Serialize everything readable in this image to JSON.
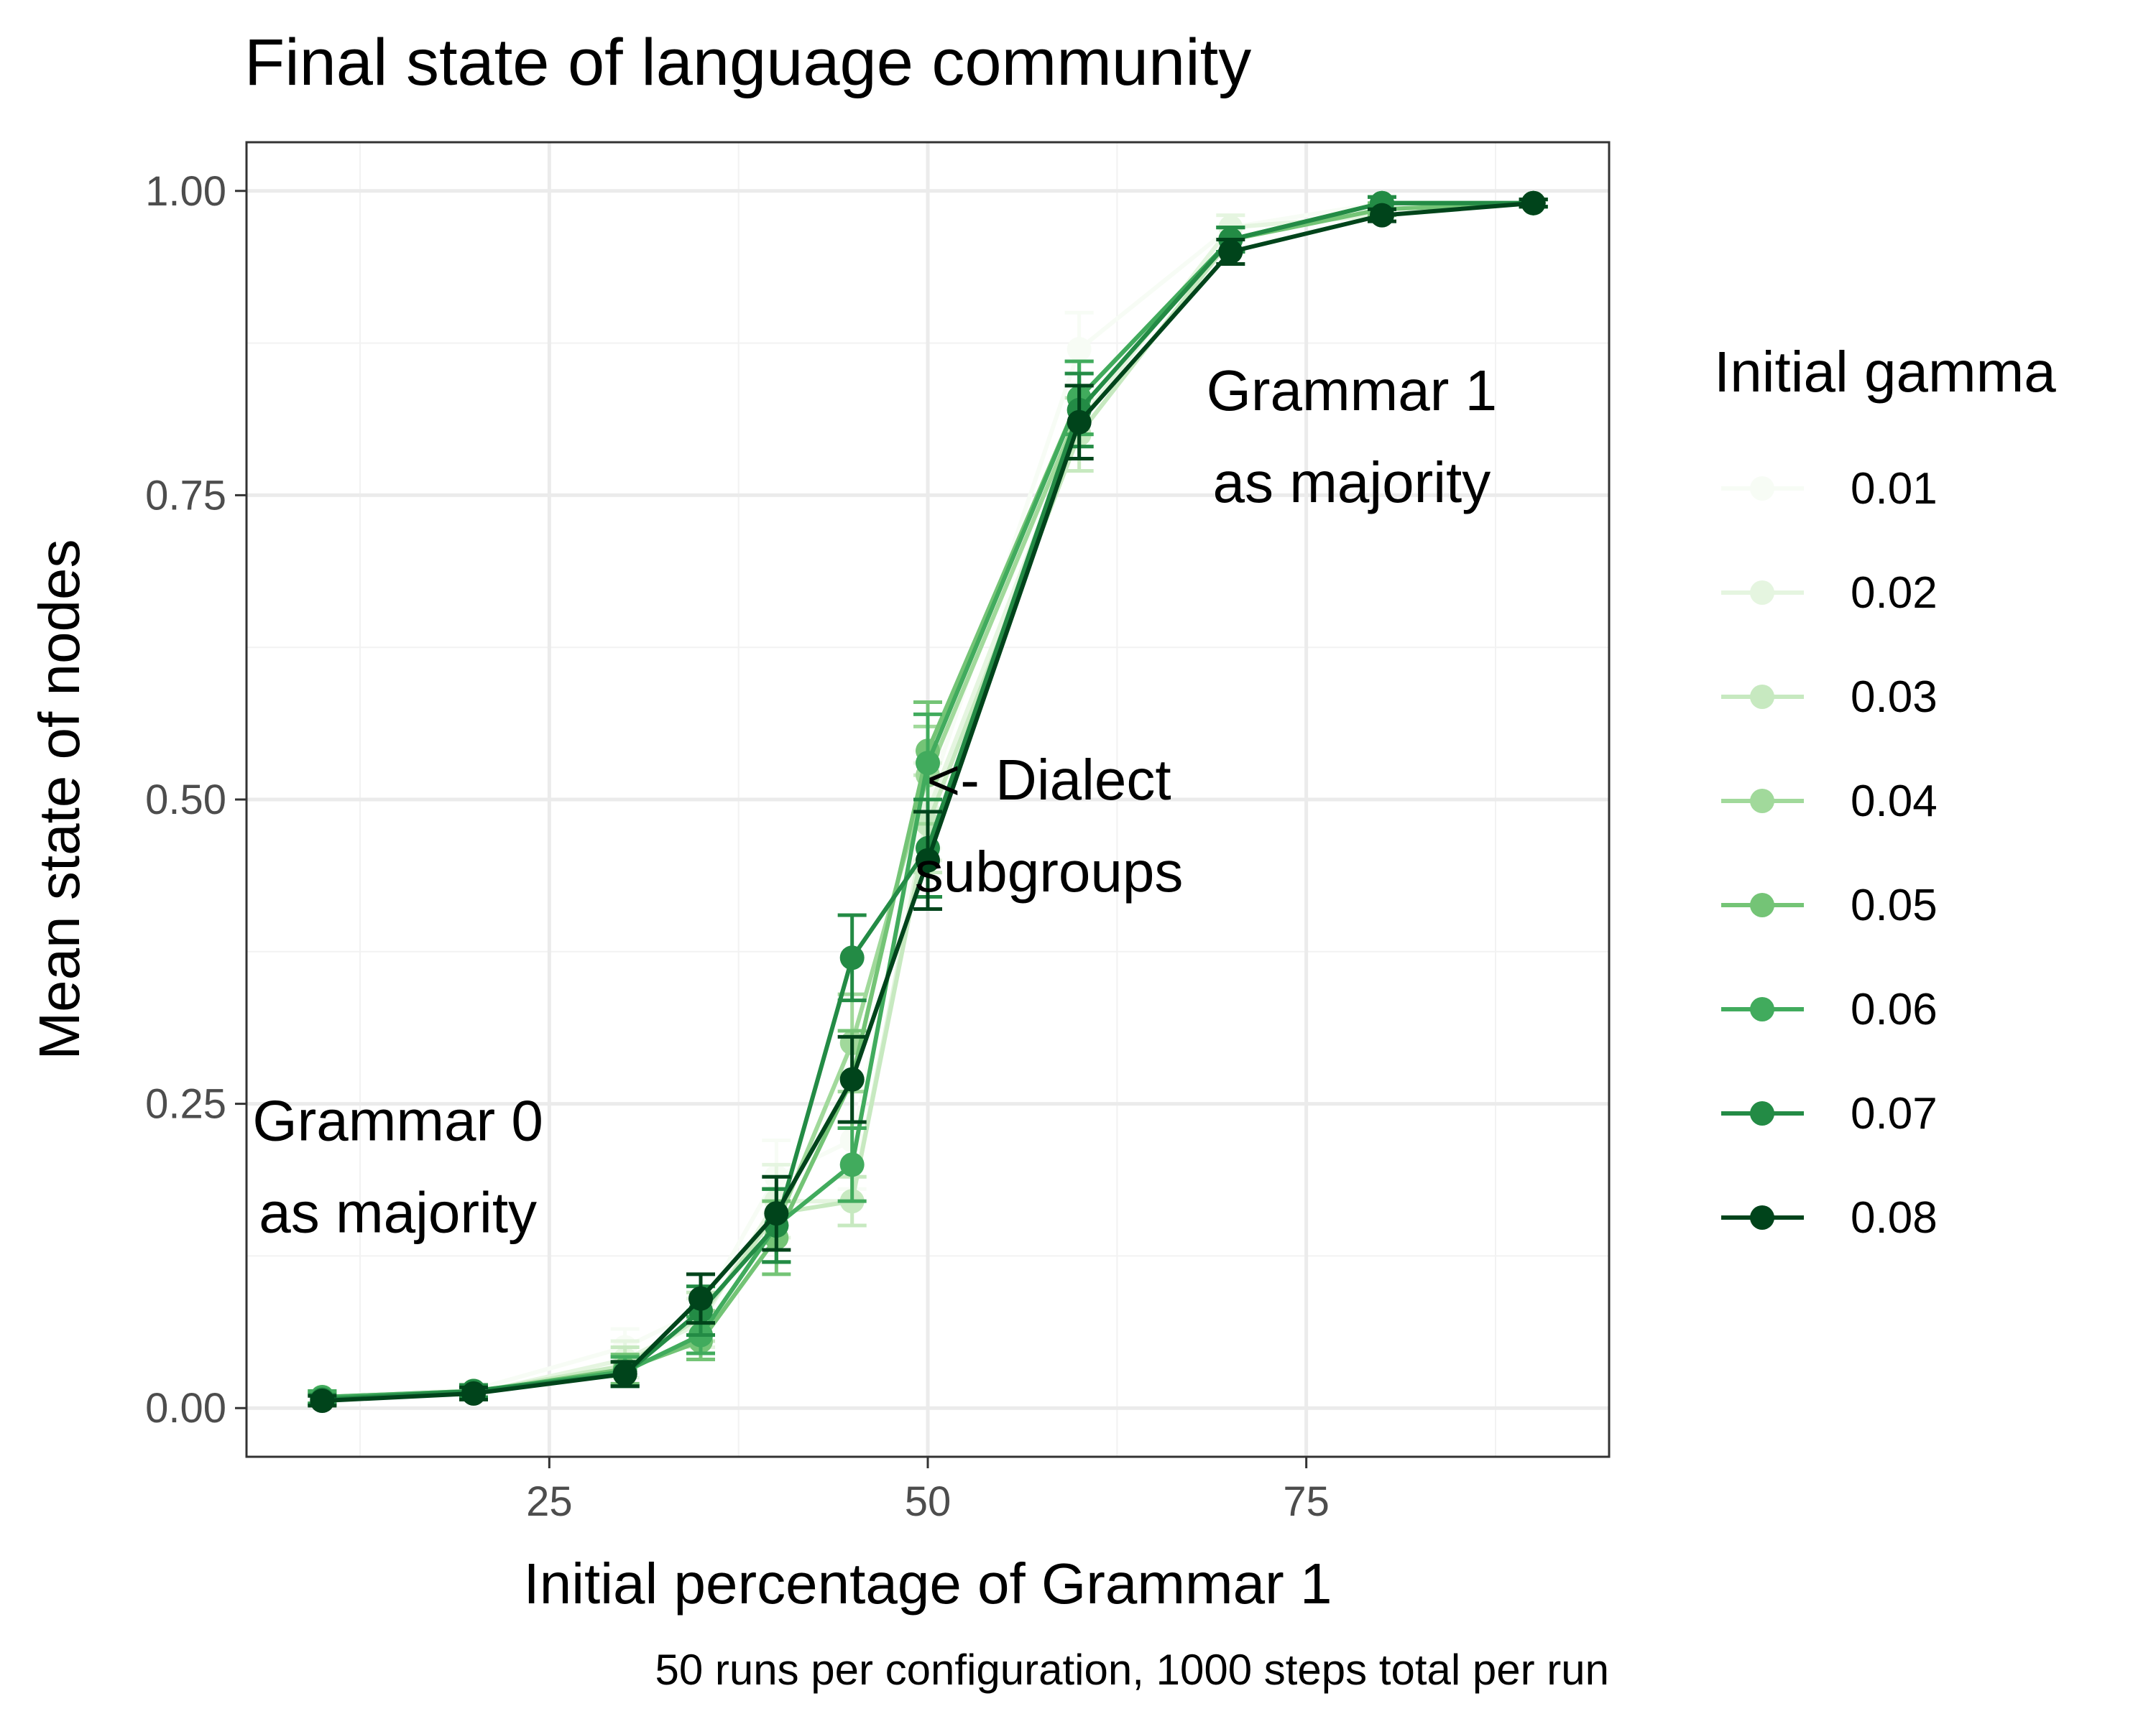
{
  "chart_data": {
    "type": "line",
    "title": "Final state of language community",
    "xlabel": "Initial percentage of Grammar 1",
    "ylabel": "Mean state of nodes",
    "caption": "50 runs per configuration, 1000 steps total per run",
    "xlim": [
      5,
      95
    ],
    "ylim": [
      -0.04,
      1.04
    ],
    "x_ticks": [
      25,
      50,
      75
    ],
    "y_ticks": [
      0.0,
      0.25,
      0.5,
      0.75,
      1.0
    ],
    "y_tick_labels": [
      "0.00",
      "0.25",
      "0.50",
      "0.75",
      "1.00"
    ],
    "grid": true,
    "legend": {
      "title": "Initial gamma",
      "position": "right"
    },
    "annotations": [
      {
        "lines": [
          "Grammar 0",
          "as majority"
        ],
        "x": 15,
        "y": 0.22
      },
      {
        "lines": [
          "<- Dialect",
          "subgroups"
        ],
        "x": 58,
        "y": 0.5
      },
      {
        "lines": [
          "Grammar 1",
          "as majority"
        ],
        "x": 78,
        "y": 0.82
      }
    ],
    "x": [
      10,
      20,
      30,
      35,
      40,
      45,
      50,
      60,
      70,
      80,
      90
    ],
    "series": [
      {
        "name": "0.01",
        "color": "#f7fcf5",
        "values": [
          0.01,
          0.015,
          0.05,
          0.08,
          0.19,
          0.22,
          0.5,
          0.87,
          0.97,
          0.99,
          0.99
        ],
        "err": [
          0.005,
          0.005,
          0.015,
          0.02,
          0.03,
          0.04,
          0.04,
          0.03,
          0.01,
          0.005,
          0.003
        ]
      },
      {
        "name": "0.02",
        "color": "#e5f5e0",
        "values": [
          0.008,
          0.012,
          0.04,
          0.07,
          0.17,
          0.17,
          0.49,
          0.81,
          0.97,
          0.98,
          0.99
        ],
        "err": [
          0.005,
          0.005,
          0.015,
          0.02,
          0.03,
          0.02,
          0.04,
          0.03,
          0.01,
          0.005,
          0.003
        ]
      },
      {
        "name": "0.03",
        "color": "#c7e9c0",
        "values": [
          0.009,
          0.013,
          0.035,
          0.075,
          0.16,
          0.17,
          0.48,
          0.8,
          0.96,
          0.99,
          0.99
        ],
        "err": [
          0.005,
          0.005,
          0.015,
          0.02,
          0.03,
          0.02,
          0.04,
          0.03,
          0.01,
          0.005,
          0.003
        ]
      },
      {
        "name": "0.04",
        "color": "#a1d99b",
        "values": [
          0.009,
          0.014,
          0.03,
          0.06,
          0.15,
          0.3,
          0.52,
          0.82,
          0.96,
          0.99,
          0.99
        ],
        "err": [
          0.005,
          0.005,
          0.012,
          0.02,
          0.03,
          0.04,
          0.04,
          0.03,
          0.01,
          0.005,
          0.003
        ]
      },
      {
        "name": "0.05",
        "color": "#74c476",
        "values": [
          0.008,
          0.013,
          0.032,
          0.055,
          0.14,
          0.27,
          0.54,
          0.83,
          0.96,
          0.985,
          0.99
        ],
        "err": [
          0.005,
          0.005,
          0.012,
          0.015,
          0.03,
          0.04,
          0.04,
          0.03,
          0.01,
          0.005,
          0.003
        ]
      },
      {
        "name": "0.06",
        "color": "#41ab5d",
        "values": [
          0.009,
          0.014,
          0.03,
          0.06,
          0.15,
          0.2,
          0.53,
          0.83,
          0.96,
          0.99,
          0.99
        ],
        "err": [
          0.005,
          0.005,
          0.012,
          0.015,
          0.03,
          0.03,
          0.04,
          0.03,
          0.01,
          0.005,
          0.003
        ]
      },
      {
        "name": "0.07",
        "color": "#238b45",
        "values": [
          0.007,
          0.014,
          0.028,
          0.08,
          0.15,
          0.37,
          0.46,
          0.82,
          0.96,
          0.99,
          0.99
        ],
        "err": [
          0.004,
          0.005,
          0.01,
          0.02,
          0.03,
          0.035,
          0.04,
          0.03,
          0.01,
          0.005,
          0.003
        ]
      },
      {
        "name": "0.08",
        "color": "#00441b",
        "values": [
          0.006,
          0.012,
          0.028,
          0.09,
          0.16,
          0.27,
          0.45,
          0.81,
          0.95,
          0.98,
          0.99
        ],
        "err": [
          0.004,
          0.005,
          0.01,
          0.02,
          0.03,
          0.035,
          0.04,
          0.03,
          0.01,
          0.005,
          0.003
        ]
      }
    ]
  }
}
